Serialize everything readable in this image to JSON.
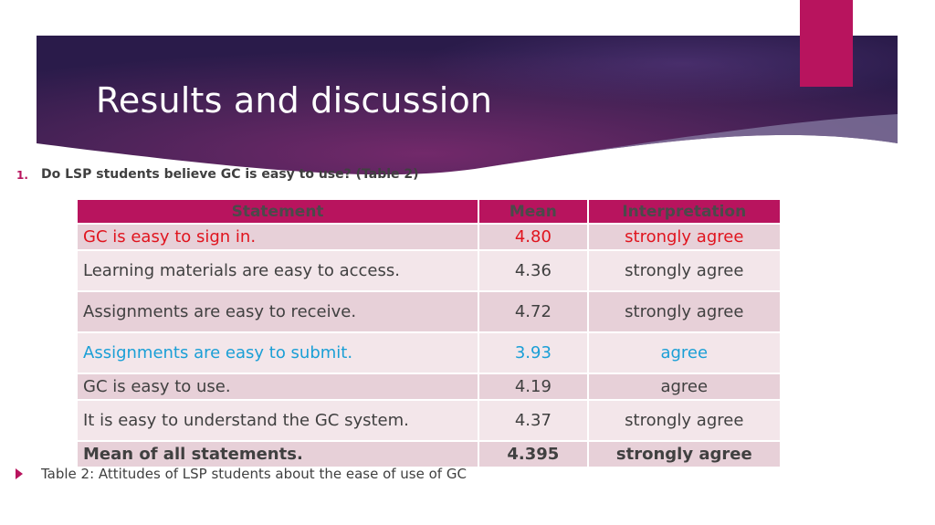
{
  "slide": {
    "title": "Results and discussion",
    "question_number": "1.",
    "question_text": "Do LSP students believe GC is easy to use? (Table 2)",
    "caption": "Table 2: Attitudes of LSP students about the ease of use of GC",
    "colors": {
      "accent": "#b8145e",
      "banner_dark": "#2a1b4a",
      "banner_mid": "#6a2a68",
      "highlight_red": "#e0141e",
      "highlight_blue": "#1a9fd6"
    }
  },
  "table": {
    "headers": [
      "Statement",
      "Mean",
      "Interpretation"
    ],
    "rows": [
      {
        "statement": "GC is easy to sign in.",
        "mean": "4.80",
        "interpretation": "strongly agree"
      },
      {
        "statement": "Learning materials are easy to access.",
        "mean": "4.36",
        "interpretation": "strongly agree"
      },
      {
        "statement": "Assignments are easy to receive.",
        "mean": "4.72",
        "interpretation": "strongly agree"
      },
      {
        "statement": "Assignments are easy to submit.",
        "mean": "3.93",
        "interpretation": "agree"
      },
      {
        "statement": "GC is easy to use.",
        "mean": "4.19",
        "interpretation": "agree"
      },
      {
        "statement": "It is easy to understand the GC system.",
        "mean": "4.37",
        "interpretation": "strongly agree"
      },
      {
        "statement": "Mean of all statements.",
        "mean": "4.395",
        "interpretation": "strongly agree"
      }
    ]
  }
}
